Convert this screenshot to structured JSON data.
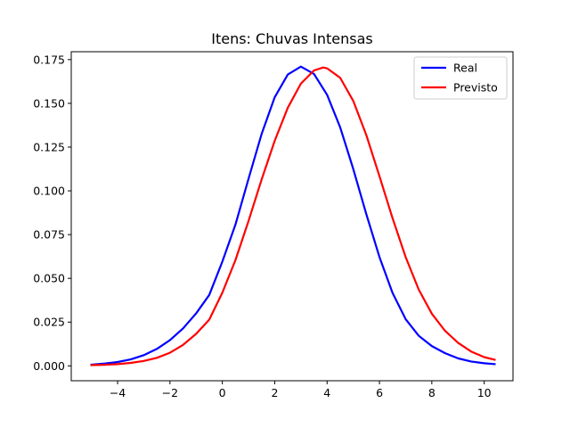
{
  "chart_data": {
    "type": "line",
    "title": "Itens: Chuvas Intensas",
    "xlabel": "",
    "ylabel": "",
    "xlim": [
      -5.77,
      11.1
    ],
    "ylim": [
      -0.0085,
      0.1795
    ],
    "xticks": [
      -4,
      -2,
      0,
      2,
      4,
      6,
      8,
      10
    ],
    "xtick_labels": [
      "−4",
      "−2",
      "0",
      "2",
      "4",
      "6",
      "8",
      "10"
    ],
    "yticks": [
      0.0,
      0.025,
      0.05,
      0.075,
      0.1,
      0.125,
      0.15,
      0.175
    ],
    "ytick_labels": [
      "0.000",
      "0.025",
      "0.050",
      "0.075",
      "0.100",
      "0.125",
      "0.150",
      "0.175"
    ],
    "grid": false,
    "legend_position": "top-right",
    "series": [
      {
        "name": "Real",
        "color": "#0000ff",
        "x": [
          -5.0,
          -4.5,
          -4.0,
          -3.5,
          -3.0,
          -2.5,
          -2.0,
          -1.5,
          -1.0,
          -0.5,
          0.0,
          0.5,
          1.0,
          1.5,
          2.0,
          2.5,
          3.0,
          3.5,
          4.0,
          4.5,
          5.0,
          5.5,
          6.0,
          6.5,
          7.0,
          7.5,
          8.0,
          8.5,
          9.0,
          9.5,
          10.0,
          10.4
        ],
        "y": [
          0.0007,
          0.0013,
          0.0022,
          0.0037,
          0.0061,
          0.0097,
          0.0147,
          0.0214,
          0.03,
          0.0405,
          0.0596,
          0.0807,
          0.1069,
          0.1325,
          0.1535,
          0.1665,
          0.171,
          0.1668,
          0.1549,
          0.1363,
          0.1125,
          0.0866,
          0.0622,
          0.0417,
          0.0267,
          0.0172,
          0.0113,
          0.0073,
          0.0043,
          0.0025,
          0.0015,
          0.001
        ]
      },
      {
        "name": "Previsto",
        "color": "#ff0000",
        "x": [
          -5.0,
          -4.5,
          -4.0,
          -3.5,
          -3.0,
          -2.5,
          -2.0,
          -1.5,
          -1.0,
          -0.5,
          0.0,
          0.5,
          1.0,
          1.5,
          2.0,
          2.5,
          3.0,
          3.5,
          3.85,
          4.0,
          4.5,
          5.0,
          5.5,
          6.0,
          6.5,
          7.0,
          7.5,
          8.0,
          8.5,
          9.0,
          9.5,
          10.0,
          10.4
        ],
        "y": [
          0.0004,
          0.0006,
          0.001,
          0.0017,
          0.0028,
          0.0046,
          0.0075,
          0.012,
          0.0183,
          0.0264,
          0.0418,
          0.0604,
          0.0828,
          0.1065,
          0.1286,
          0.1475,
          0.1613,
          0.1688,
          0.1705,
          0.17,
          0.1646,
          0.1514,
          0.1318,
          0.1084,
          0.0844,
          0.0622,
          0.0436,
          0.0298,
          0.0201,
          0.0132,
          0.0082,
          0.005,
          0.0035
        ]
      }
    ]
  }
}
